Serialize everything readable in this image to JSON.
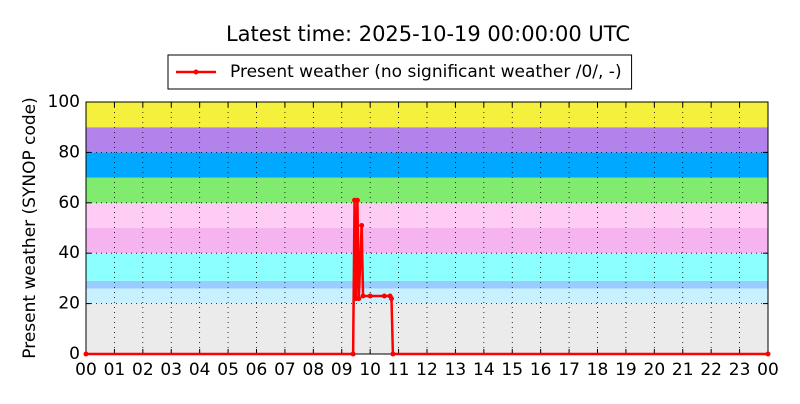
{
  "chart_data": {
    "type": "line",
    "title": "Latest time: 2025-10-19 00:00:00 UTC",
    "ylabel": "Present weather (SYNOP code)",
    "legend": "top",
    "grid": true,
    "xlim": [
      0,
      24
    ],
    "ylim": [
      0,
      100
    ],
    "xticks": [
      {
        "value": 0,
        "label": "00"
      },
      {
        "value": 1,
        "label": "01"
      },
      {
        "value": 2,
        "label": "02"
      },
      {
        "value": 3,
        "label": "03"
      },
      {
        "value": 4,
        "label": "04"
      },
      {
        "value": 5,
        "label": "05"
      },
      {
        "value": 6,
        "label": "06"
      },
      {
        "value": 7,
        "label": "07"
      },
      {
        "value": 8,
        "label": "08"
      },
      {
        "value": 9,
        "label": "09"
      },
      10,
      11,
      12,
      13,
      14,
      15,
      16,
      17,
      18,
      19,
      20,
      21,
      22,
      23,
      {
        "value": 24,
        "label": "00"
      }
    ],
    "yticks": [
      0,
      20,
      40,
      60,
      80,
      100
    ],
    "bands": [
      {
        "from": 0,
        "to": 20,
        "color": "#ebebeb"
      },
      {
        "from": 20,
        "to": 26,
        "color": "#c8f0ff"
      },
      {
        "from": 26,
        "to": 29,
        "color": "#99ccff"
      },
      {
        "from": 29,
        "to": 40,
        "color": "#8cffff"
      },
      {
        "from": 40,
        "to": 50,
        "color": "#f5b4f0"
      },
      {
        "from": 50,
        "to": 60,
        "color": "#ffccf5"
      },
      {
        "from": 60,
        "to": 70,
        "color": "#80eb6e"
      },
      {
        "from": 70,
        "to": 80,
        "color": "#00a8ff"
      },
      {
        "from": 80,
        "to": 90,
        "color": "#b482eb"
      },
      {
        "from": 90,
        "to": 100,
        "color": "#f5f03c"
      }
    ],
    "series": [
      {
        "name": "Present weather (no significant weather /0/, -)",
        "color": "#ff0000",
        "x": [
          0,
          9.4,
          9.45,
          9.5,
          9.55,
          9.6,
          9.7,
          9.75,
          10.0,
          10.5,
          10.7,
          10.75,
          10.8,
          24
        ],
        "values": [
          0,
          0,
          61,
          22,
          61,
          22,
          51,
          23,
          23,
          23,
          23,
          22,
          0,
          0
        ]
      }
    ]
  }
}
